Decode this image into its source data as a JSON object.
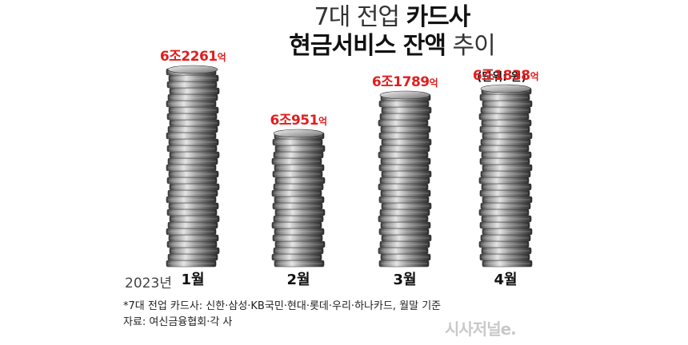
{
  "title": {
    "line1_light": "7대 전업 ",
    "line1_bold": "카드사",
    "line2_bold": "현금서비스 잔액",
    "line2_light": " 추이"
  },
  "unit": "(단위: 원)",
  "year_label": "2023년",
  "chart_data": {
    "type": "bar",
    "categories": [
      "1월",
      "2월",
      "3월",
      "4월"
    ],
    "values": [
      62261,
      60951,
      61789,
      61838
    ],
    "value_labels": [
      {
        "main": "6조2261",
        "suffix": "억"
      },
      {
        "main": "6조951",
        "suffix": "억"
      },
      {
        "main": "6조1789",
        "suffix": "억"
      },
      {
        "main": "6조1838",
        "suffix": "억"
      }
    ],
    "label_color": "#e01e1e"
  },
  "footnote1": "*7대 전업 카드사: 신한·삼성·KB국민·현대·롯데·우리·하나카드, 월말 기준",
  "footnote2": "자료: 여신금융협회·각 사",
  "logo": "시사저널e."
}
